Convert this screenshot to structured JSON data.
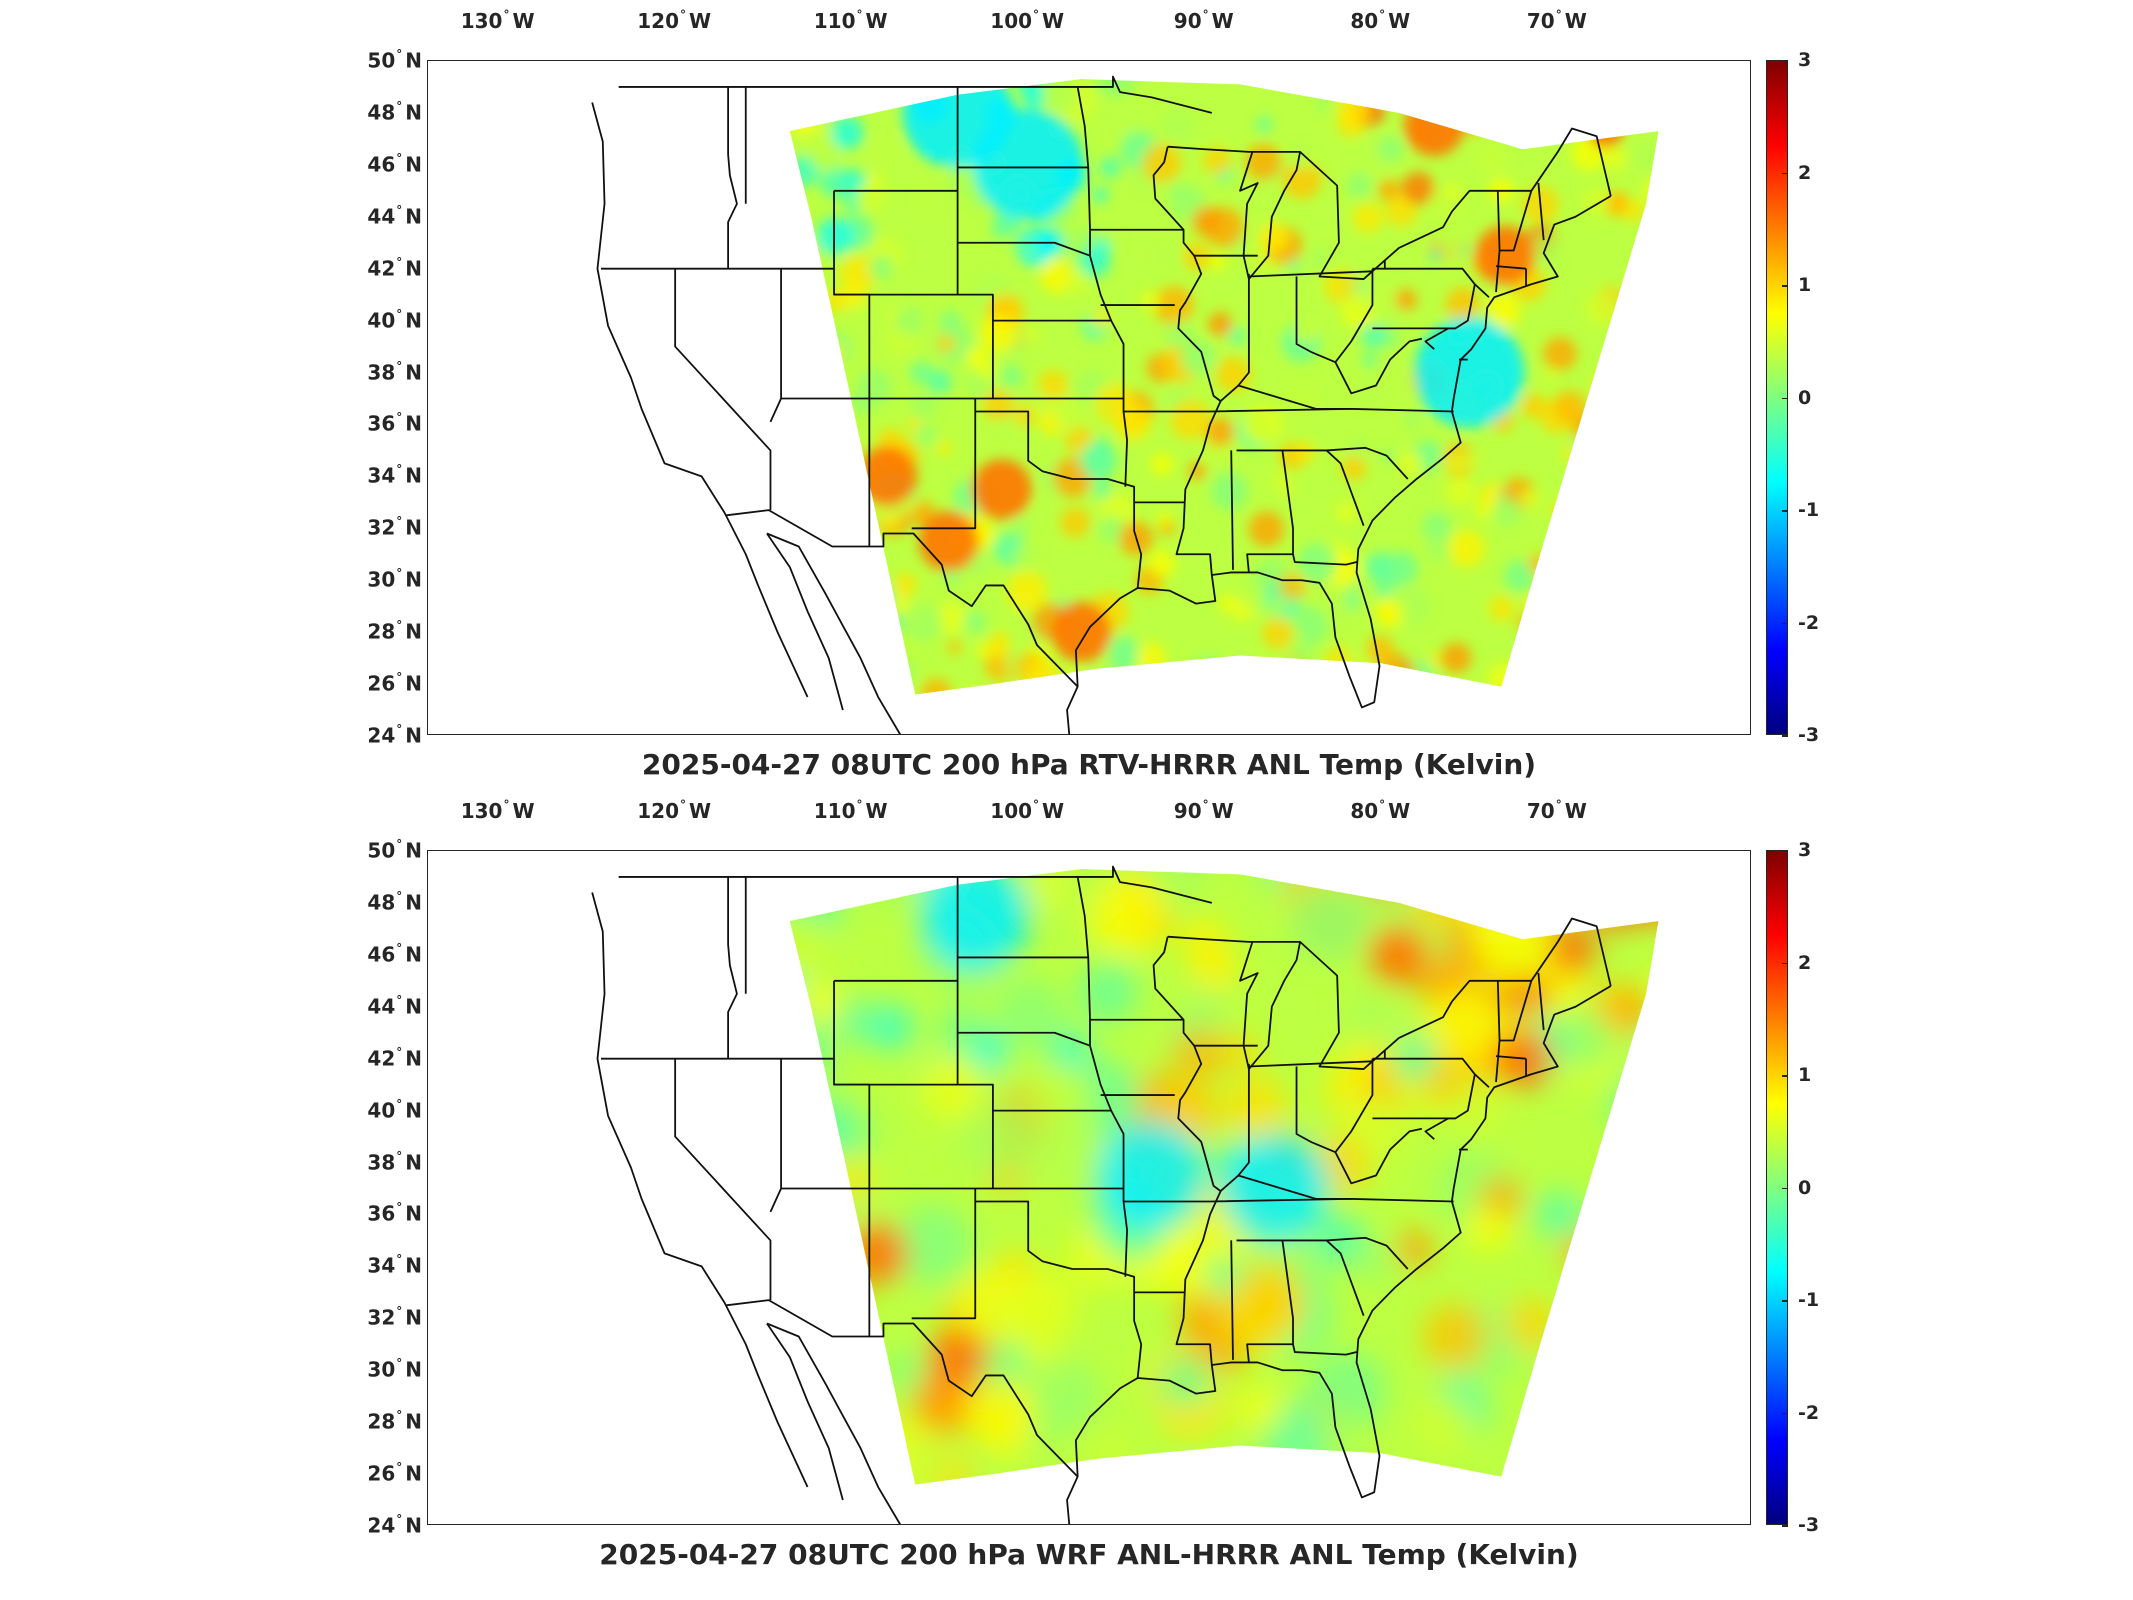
{
  "panels": [
    {
      "title": "2025-04-27 08UTC 200 hPa RTV-HRRR ANL Temp (Kelvin)",
      "field_style": "noisy",
      "warm_spots": [
        [
          -104.5,
          31.5
        ],
        [
          -101.5,
          33.5
        ],
        [
          -97,
          28
        ],
        [
          -73,
          42.5
        ],
        [
          -77,
          47.5
        ],
        [
          -108,
          34
        ]
      ],
      "cool_spots": [
        [
          -104,
          48
        ],
        [
          -100,
          46
        ],
        [
          -75,
          38
        ]
      ]
    },
    {
      "title": "2025-04-27 08UTC 200 hPa WRF ANL-HRRR ANL Temp (Kelvin)",
      "field_style": "smooth",
      "warm_spots": [
        [
          -104,
          30.5
        ],
        [
          -108.5,
          34.5
        ],
        [
          -79,
          46
        ],
        [
          -72,
          42
        ]
      ],
      "cool_spots": [
        [
          -103,
          47.5
        ],
        [
          -93,
          37.5
        ],
        [
          -86,
          37
        ]
      ]
    }
  ],
  "lon_labels": [
    {
      "deg": "130",
      "hem": "W"
    },
    {
      "deg": "120",
      "hem": "W"
    },
    {
      "deg": "110",
      "hem": "W"
    },
    {
      "deg": "100",
      "hem": "W"
    },
    {
      "deg": "90",
      "hem": "W"
    },
    {
      "deg": "80",
      "hem": "W"
    },
    {
      "deg": "70",
      "hem": "W"
    }
  ],
  "lat_labels": [
    {
      "deg": "50",
      "hem": "N"
    },
    {
      "deg": "48",
      "hem": "N"
    },
    {
      "deg": "46",
      "hem": "N"
    },
    {
      "deg": "44",
      "hem": "N"
    },
    {
      "deg": "42",
      "hem": "N"
    },
    {
      "deg": "40",
      "hem": "N"
    },
    {
      "deg": "38",
      "hem": "N"
    },
    {
      "deg": "36",
      "hem": "N"
    },
    {
      "deg": "34",
      "hem": "N"
    },
    {
      "deg": "32",
      "hem": "N"
    },
    {
      "deg": "30",
      "hem": "N"
    },
    {
      "deg": "28",
      "hem": "N"
    },
    {
      "deg": "26",
      "hem": "N"
    },
    {
      "deg": "24",
      "hem": "N"
    }
  ],
  "colorbar": {
    "min": -3,
    "max": 3,
    "ticks": [
      "3",
      "2",
      "1",
      "0",
      "-1",
      "-2",
      "-3"
    ],
    "colormap": "jet"
  },
  "map_extent": {
    "lon": [
      -134,
      -59
    ],
    "lat": [
      24,
      50
    ]
  }
}
